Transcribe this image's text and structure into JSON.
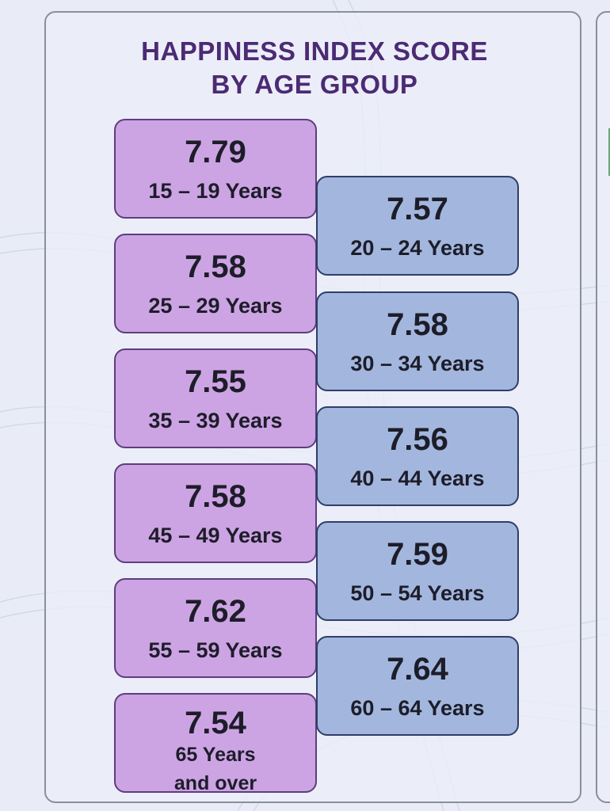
{
  "title_line1": "HAPPINESS INDEX SCORE",
  "title_line2": "BY AGE GROUP",
  "colors": {
    "left_cards": "#cda4e3",
    "right_cards": "#a3b7de",
    "title": "#4c2a74",
    "background": "#e9ebf7"
  },
  "left": [
    {
      "score": "7.79",
      "age": "15 – 19 Years"
    },
    {
      "score": "7.58",
      "age": "25 – 29 Years"
    },
    {
      "score": "7.55",
      "age": "35 – 39 Years"
    },
    {
      "score": "7.58",
      "age": "45 – 49 Years"
    },
    {
      "score": "7.62",
      "age": "55 – 59 Years"
    },
    {
      "score": "7.54",
      "age_line1": "65 Years",
      "age_line2": "and over"
    }
  ],
  "right": [
    {
      "score": "7.57",
      "age": "20 – 24 Years"
    },
    {
      "score": "7.58",
      "age": "30 – 34 Years"
    },
    {
      "score": "7.56",
      "age": "40 – 44 Years"
    },
    {
      "score": "7.59",
      "age": "50 – 54 Years"
    },
    {
      "score": "7.64",
      "age": "60 – 64 Years"
    }
  ]
}
